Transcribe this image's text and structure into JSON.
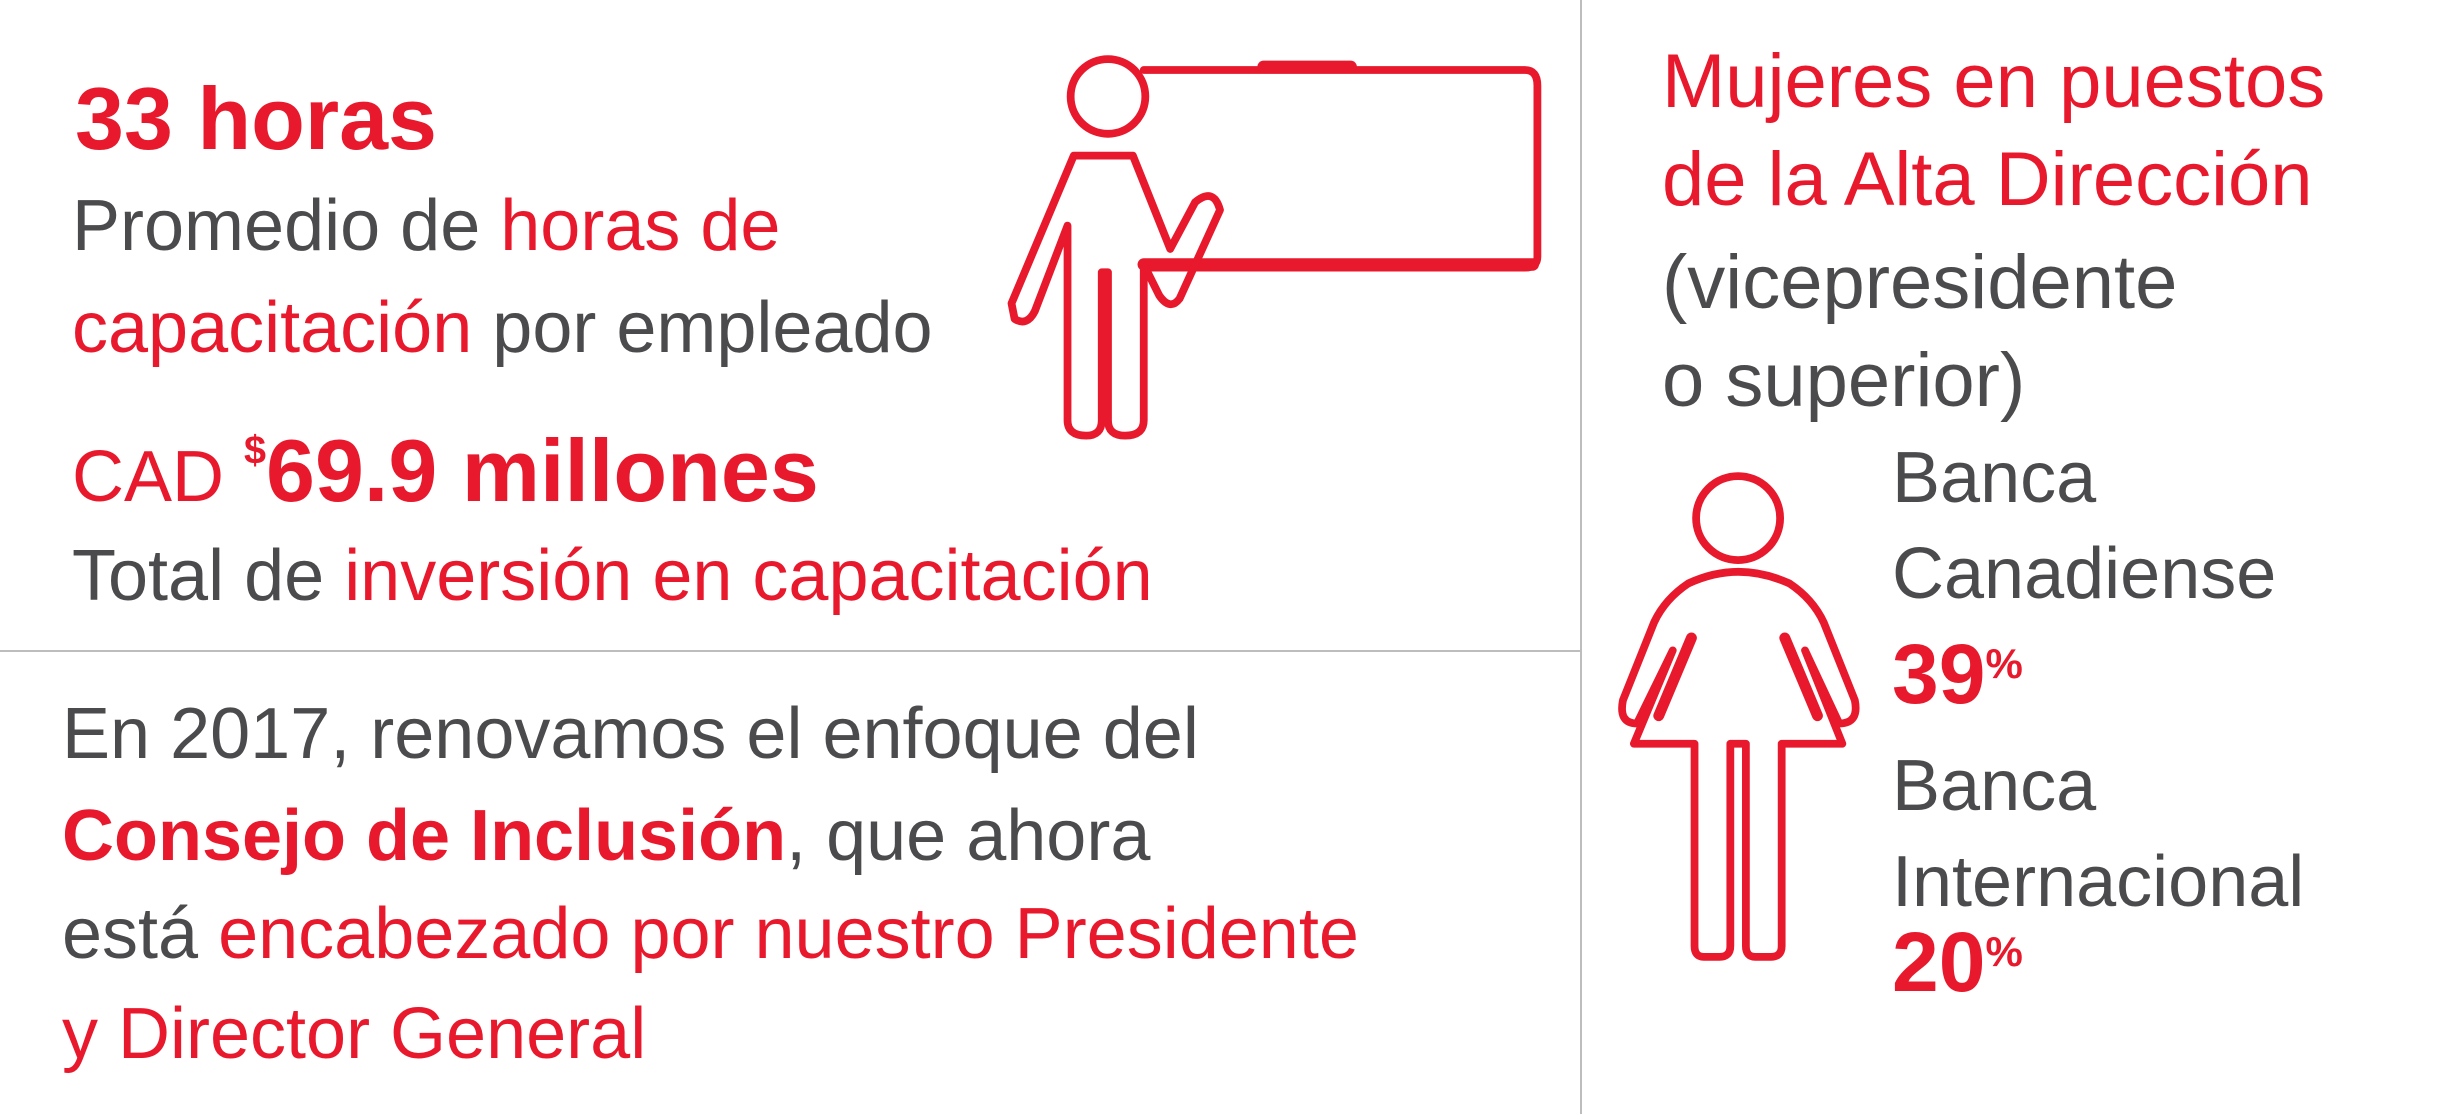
{
  "colors": {
    "accent": "#e8192c",
    "text": "#4b4b4d",
    "divider": "#bdbdbd"
  },
  "training": {
    "hours_value": "33 horas",
    "hours_desc": [
      "Promedio de ",
      "horas de",
      "capacitación",
      " por empleado"
    ],
    "investment_prefix": "CAD ",
    "investment_currency": "$",
    "investment_value": "69.9 millones",
    "investment_desc": [
      "Total de ",
      "inversión en capacitación"
    ],
    "icon": "teacher-at-board-icon"
  },
  "inclusion": {
    "line1": "En 2017, renovamos el enfoque del",
    "line2_bold": "Consejo de Inclusión",
    "line2_rest": ", que ahora",
    "line3_gray": "está ",
    "line3_red": "encabezado por nuestro Presidente",
    "line4": "y Director General"
  },
  "women": {
    "title": [
      "Mujeres en puestos",
      "de la Alta Dirección"
    ],
    "subtitle": [
      "(vicepresidente",
      "o superior)"
    ],
    "icon": "woman-icon",
    "stats": [
      {
        "label": [
          "Banca",
          "Canadiense"
        ],
        "value": "39",
        "unit": "%"
      },
      {
        "label": [
          "Banca",
          "Internacional"
        ],
        "value": "20",
        "unit": "%"
      }
    ]
  }
}
